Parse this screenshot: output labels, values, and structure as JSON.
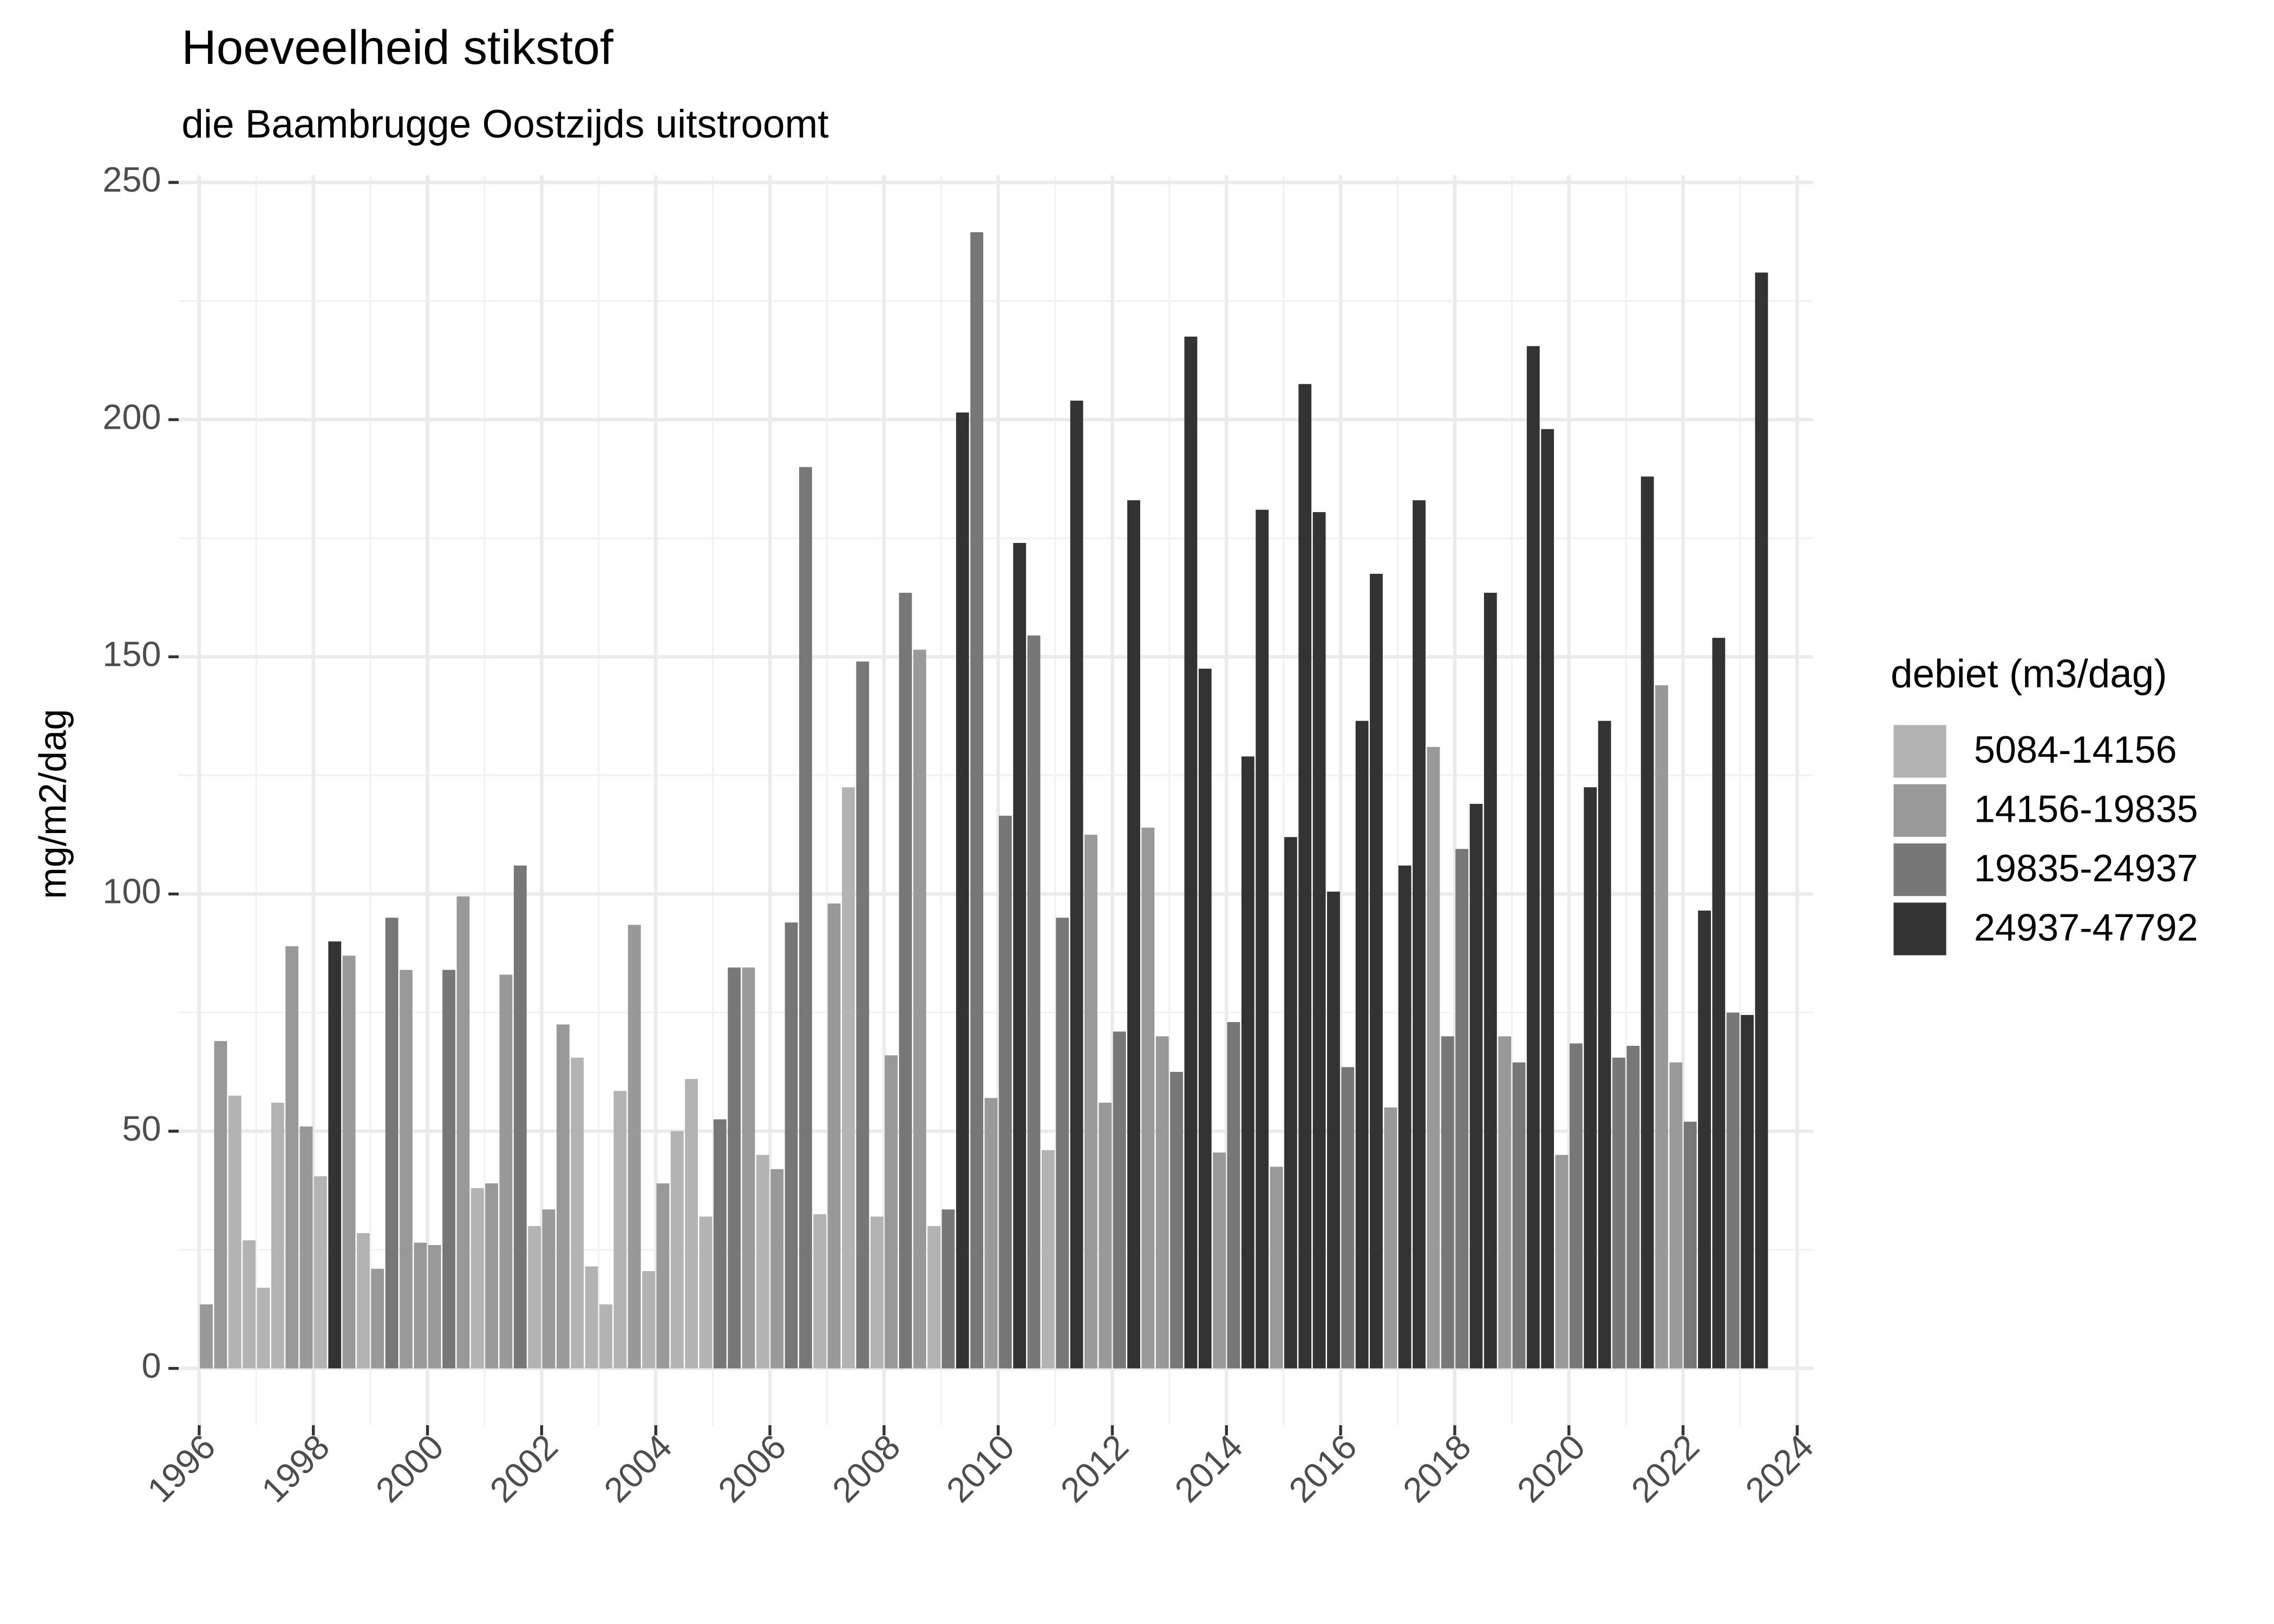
{
  "chart_data": {
    "type": "bar",
    "title": "Hoeveelheid stikstof",
    "subtitle": "die Baambrugge Oostzijds uitstroomt",
    "y_label": "mg/m2/dag",
    "legend_title": "debiet (m3/dag)",
    "legend_position": "right",
    "grid": true,
    "xlim": [
      1995.64,
      2024.28
    ],
    "xticks": [
      1996,
      1998,
      2000,
      2002,
      2004,
      2006,
      2008,
      2010,
      2012,
      2014,
      2016,
      2018,
      2020,
      2022,
      2024
    ],
    "ylim": [
      -11.98,
      251.48
    ],
    "yticks": [
      0,
      50,
      100,
      150,
      200,
      250
    ],
    "series": [
      {
        "name": "5084-14156",
        "color": "#b3b3b3",
        "x": [
          1996.625,
          1996.875,
          1997.125,
          1997.375,
          1998.125,
          1998.875,
          2000.875,
          2001.875,
          2002.625,
          2002.875,
          2003.125,
          2003.375,
          2003.875,
          2004.375,
          2004.625,
          2004.875,
          2005.875,
          2006.875,
          2007.375,
          2007.875,
          2008.875,
          2010.875
        ],
        "values": [
          57.5,
          27,
          17,
          56,
          40.5,
          28.5,
          38,
          30,
          65.5,
          21.5,
          13.5,
          58.5,
          20.5,
          50,
          61,
          32,
          45,
          32.5,
          122.5,
          32,
          30,
          46
        ]
      },
      {
        "name": "14156-19835",
        "color": "#999999",
        "x": [
          1996.125,
          1996.375,
          1997.625,
          1997.875,
          1998.625,
          1999.125,
          1999.625,
          1999.875,
          2000.125,
          2000.625,
          2001.125,
          2001.375,
          2002.125,
          2002.375,
          2003.625,
          2004.125,
          2005.625,
          2006.125,
          2007.125,
          2008.125,
          2008.625,
          2009.875,
          2011.625,
          2011.875,
          2012.625,
          2012.875,
          2013.875,
          2014.875,
          2016.875,
          2017.625,
          2018.875,
          2019.875,
          2021.625,
          2021.875
        ],
        "values": [
          13.5,
          69,
          89,
          51,
          87,
          21,
          84,
          26.5,
          26,
          99.5,
          39,
          83,
          33.5,
          72.5,
          93.5,
          39,
          84.5,
          42,
          98,
          66,
          151.5,
          57,
          112.5,
          56,
          114,
          70,
          45.5,
          42.5,
          55,
          131,
          70,
          45,
          144,
          64.5
        ]
      },
      {
        "name": "19835-24937",
        "color": "#777777",
        "x": [
          1999.375,
          2000.375,
          2001.625,
          2005.125,
          2005.375,
          2006.375,
          2006.625,
          2007.625,
          2008.375,
          2009.125,
          2009.625,
          2010.125,
          2010.625,
          2011.125,
          2012.125,
          2013.125,
          2014.125,
          2016.125,
          2017.875,
          2018.125,
          2019.125,
          2020.125,
          2020.875,
          2021.125,
          2022.125,
          2022.875
        ],
        "values": [
          95,
          84,
          106,
          52.5,
          84.5,
          94,
          190,
          149,
          163.5,
          33.5,
          239.5,
          116.5,
          154.5,
          95,
          71,
          62.5,
          73,
          63.5,
          70,
          109.5,
          64.5,
          68.5,
          65.5,
          68,
          52,
          75
        ]
      },
      {
        "name": "24937-47792",
        "color": "#333333",
        "x": [
          1998.375,
          2009.375,
          2010.375,
          2011.375,
          2012.375,
          2013.375,
          2013.625,
          2014.375,
          2014.625,
          2015.125,
          2015.375,
          2015.625,
          2015.875,
          2016.375,
          2016.625,
          2017.125,
          2017.375,
          2018.375,
          2018.625,
          2019.375,
          2019.625,
          2020.375,
          2020.625,
          2021.375,
          2022.375,
          2022.625,
          2023.125,
          2023.375
        ],
        "values": [
          90,
          201.5,
          174,
          204,
          183,
          217.5,
          147.5,
          129,
          181,
          112,
          207.5,
          180.5,
          100.5,
          136.5,
          167.5,
          106,
          183,
          119,
          163.5,
          215.5,
          198,
          122.5,
          136.5,
          188,
          96.5,
          154,
          74.5,
          231
        ]
      }
    ]
  }
}
